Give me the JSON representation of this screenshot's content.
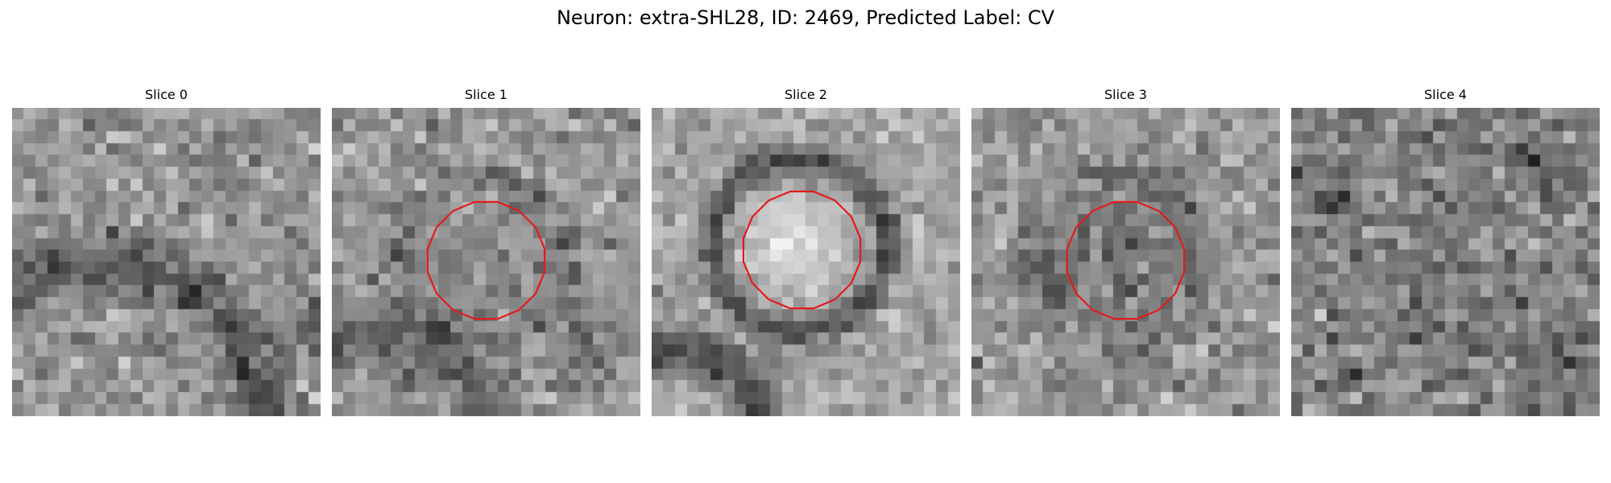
{
  "figure": {
    "title": "Neuron: extra-SHL28, ID: 2469, Predicted Label: CV",
    "grid_size": 26,
    "contour_color": "#e41a1c",
    "colormap": "gray",
    "panels": [
      {
        "title": "Slice 0",
        "seed": 11,
        "base": 150,
        "noise": 38,
        "has_contour": false,
        "features": [
          {
            "type": "ring",
            "cx": 7.5,
            "cy": 27,
            "r": 14,
            "w": 2.5,
            "amp": -55
          },
          {
            "type": "blob",
            "cx": 26,
            "cy": 19,
            "r": 2.5,
            "amp": -60
          },
          {
            "type": "blob",
            "cx": 17,
            "cy": 4,
            "r": 1.5,
            "amp": -35
          }
        ]
      },
      {
        "title": "Slice 1",
        "seed": 23,
        "base": 150,
        "noise": 36,
        "has_contour": true,
        "features": [
          {
            "type": "ring",
            "cx": 12.5,
            "cy": 12.5,
            "r": 6.8,
            "w": 1.3,
            "amp": -30
          },
          {
            "type": "blob",
            "cx": 12.5,
            "cy": 12.5,
            "r": 5,
            "amp": -12
          },
          {
            "type": "ring",
            "cx": 4,
            "cy": 28,
            "r": 9,
            "w": 2.2,
            "amp": -55
          },
          {
            "type": "blob",
            "cx": 22,
            "cy": 20,
            "r": 2.5,
            "amp": -45
          }
        ]
      },
      {
        "title": "Slice 2",
        "seed": 37,
        "base": 165,
        "noise": 30,
        "has_contour": true,
        "features": [
          {
            "type": "ring",
            "cx": 12.5,
            "cy": 11.5,
            "r": 7.3,
            "w": 1.2,
            "amp": -85
          },
          {
            "type": "blob",
            "cx": 12,
            "cy": 11.5,
            "r": 4.5,
            "amp": 45
          },
          {
            "type": "ring",
            "cx": 2,
            "cy": 28.5,
            "r": 8,
            "w": 1.8,
            "amp": -90
          }
        ]
      },
      {
        "title": "Slice 3",
        "seed": 51,
        "base": 150,
        "noise": 38,
        "has_contour": true,
        "features": [
          {
            "type": "ring",
            "cx": 12.5,
            "cy": 12.5,
            "r": 6.6,
            "w": 1.6,
            "amp": -22
          },
          {
            "type": "blob",
            "cx": 12.5,
            "cy": 12.5,
            "r": 5.5,
            "amp": -35
          },
          {
            "type": "blob",
            "cx": 6,
            "cy": 14,
            "r": 2,
            "amp": -35
          }
        ]
      },
      {
        "title": "Slice 4",
        "seed": 67,
        "base": 125,
        "noise": 40,
        "has_contour": false,
        "features": [
          {
            "type": "blob",
            "cx": 20,
            "cy": 4.5,
            "r": 1.6,
            "amp": -60
          },
          {
            "type": "blob",
            "cx": 4,
            "cy": 8,
            "r": 1.2,
            "amp": -55
          }
        ]
      }
    ]
  }
}
